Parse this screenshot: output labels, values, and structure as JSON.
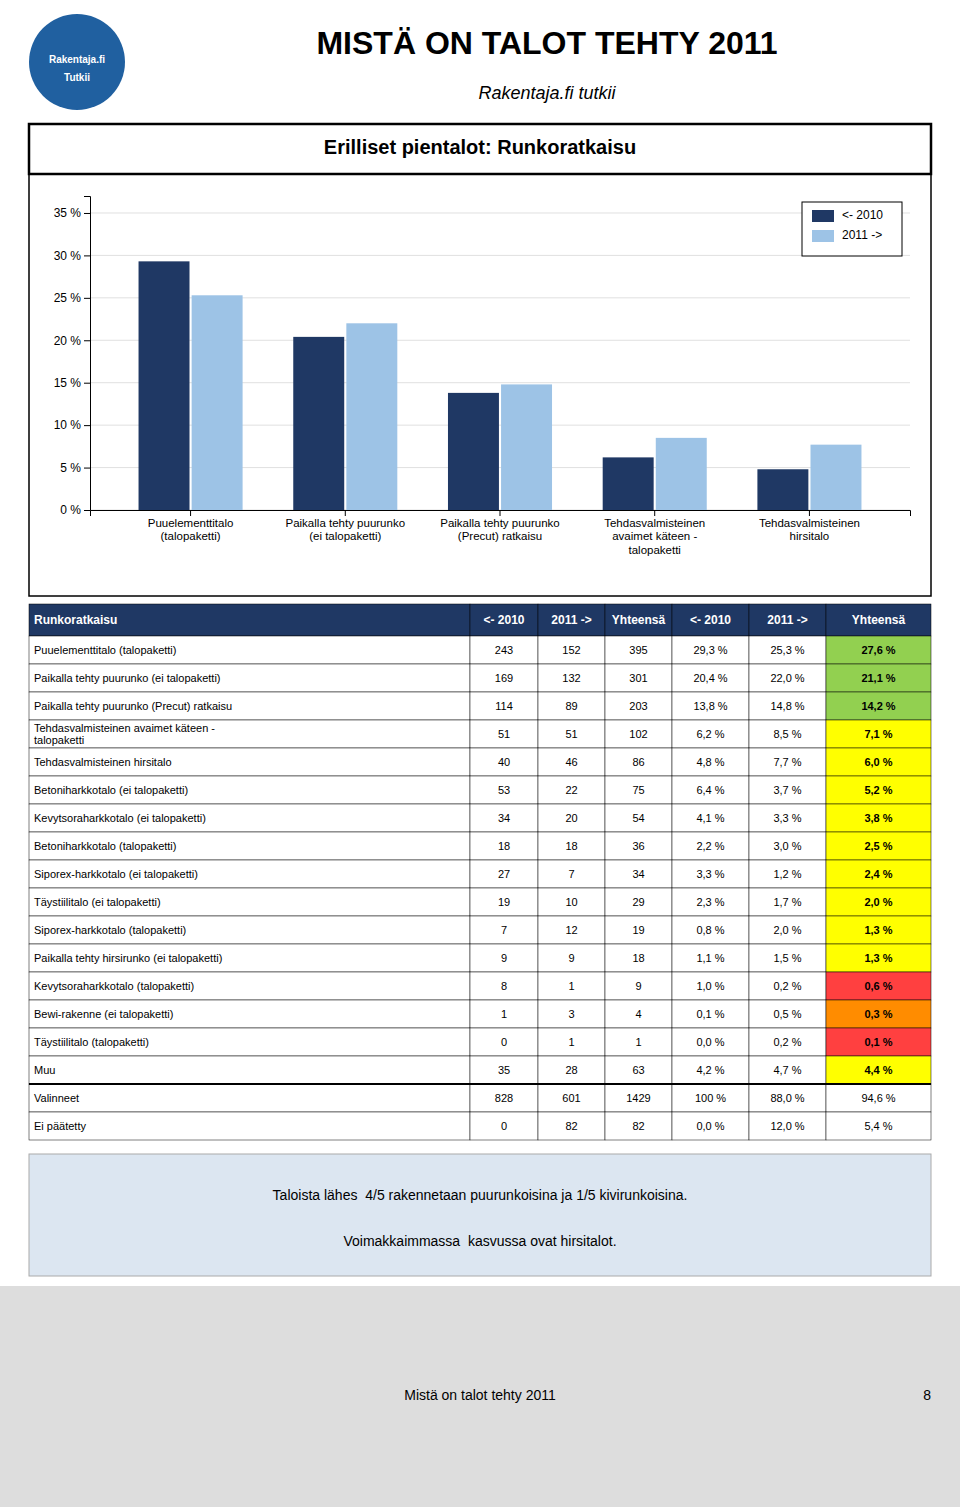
{
  "page": {
    "title": "MISTÄ ON TALOT TEHTY 2011",
    "subtitle": "Rakentaja.fi tutkii",
    "logo": [
      "Rakentaja.fi",
      "Tutkii"
    ],
    "logo_color": "#2060A0",
    "background": "#FFFFFF"
  },
  "chart_data": {
    "type": "bar",
    "title": "Erilliset pientalot: Runkoratkaisu",
    "categories": [
      "Puuelementtitalo\n(talopaketti)",
      "Paikalla tehty puurunko\n(ei talopaketti)",
      "Paikalla tehty puurunko\n(Precut) ratkaisu",
      "Tehdasvalmisteinen\navaimet käteen -\ntalopaketti",
      "Tehdasvalmisteinen\nhirsitalo"
    ],
    "series": [
      {
        "name": "<- 2010",
        "color": "#1F3864",
        "values": [
          29.3,
          20.4,
          13.8,
          6.2,
          4.8
        ]
      },
      {
        "name": "2011 ->",
        "color": "#9DC3E6",
        "values": [
          25.3,
          22.0,
          14.8,
          8.5,
          7.7
        ]
      }
    ],
    "ylim": [
      0,
      37
    ],
    "yticks": [
      {
        "value": 0,
        "label": "0 %"
      },
      {
        "value": 5,
        "label": "5 %"
      },
      {
        "value": 10,
        "label": "10 %"
      },
      {
        "value": 15,
        "label": "15 %"
      },
      {
        "value": 20,
        "label": "20 %"
      },
      {
        "value": 25,
        "label": "25 %"
      },
      {
        "value": 30,
        "label": "30 %"
      },
      {
        "value": 35,
        "label": "35 %"
      }
    ],
    "grid": true,
    "legend": "upper right"
  },
  "table": {
    "header": [
      "Runkoratkaisu",
      "<- 2010",
      "2011 ->",
      "Yhteensä",
      "<- 2010",
      "2011 ->",
      "Yhteensä"
    ],
    "header_color": "#1F3864",
    "header_text_color": "#FFFFFF",
    "rows": [
      [
        "Puuelementtitalo (talopaketti)",
        "243",
        "152",
        "395",
        "29,3 %",
        "25,3 %",
        "27,6 %"
      ],
      [
        "Paikalla tehty puurunko (ei talopaketti)",
        "169",
        "132",
        "301",
        "20,4 %",
        "22,0 %",
        "21,1 %"
      ],
      [
        "Paikalla tehty puurunko (Precut) ratkaisu",
        "114",
        "89",
        "203",
        "13,8 %",
        "14,8 %",
        "14,2 %"
      ],
      [
        "Tehdasvalmisteinen avaimet käteen -\ntalopaketti",
        "51",
        "51",
        "102",
        "6,2 %",
        "8,5 %",
        "7,1 %"
      ],
      [
        "Tehdasvalmisteinen hirsitalo",
        "40",
        "46",
        "86",
        "4,8 %",
        "7,7 %",
        "6,0 %"
      ],
      [
        "Betoniharkkotalo (ei talopaketti)",
        "53",
        "22",
        "75",
        "6,4 %",
        "3,7 %",
        "5,2 %"
      ],
      [
        "Kevytsoraharkkotalo (ei talopaketti)",
        "34",
        "20",
        "54",
        "4,1 %",
        "3,3 %",
        "3,8 %"
      ],
      [
        "Betoniharkkotalo (talopaketti)",
        "18",
        "18",
        "36",
        "2,2 %",
        "3,0 %",
        "2,5 %"
      ],
      [
        "Siporex-harkkotalo (ei talopaketti)",
        "27",
        "7",
        "34",
        "3,3 %",
        "1,2 %",
        "2,4 %"
      ],
      [
        "Täystiilitalo (ei talopaketti)",
        "19",
        "10",
        "29",
        "2,3 %",
        "1,7 %",
        "2,0 %"
      ],
      [
        "Siporex-harkkotalo (talopaketti)",
        "7",
        "12",
        "19",
        "0,8 %",
        "2,0 %",
        "1,3 %"
      ],
      [
        "Paikalla tehty hirsirunko (ei talopaketti)",
        "9",
        "9",
        "18",
        "1,1 %",
        "1,5 %",
        "1,3 %"
      ],
      [
        "Kevytsoraharkkotalo (talopaketti)",
        "8",
        "1",
        "9",
        "1,0 %",
        "0,2 %",
        "0,6 %"
      ],
      [
        "Bewi-rakenne (ei talopaketti)",
        "1",
        "3",
        "4",
        "0,1 %",
        "0,5 %",
        "0,3 %"
      ],
      [
        "Täystiilitalo (talopaketti)",
        "0",
        "1",
        "1",
        "0,0 %",
        "0,2 %",
        "0,1 %"
      ],
      [
        "Muu",
        "35",
        "28",
        "63",
        "4,2 %",
        "4,7 %",
        "4,4 %"
      ]
    ],
    "row_colors": [
      "#92D050",
      "#92D050",
      "#92D050",
      "#FFFF00",
      "#FFFF00",
      "#FFFF00",
      "#FFFF00",
      "#FFFF00",
      "#FFFF00",
      "#FFFF00",
      "#FFFF00",
      "#FFFF00",
      "#FF4040",
      "#FF8C00",
      "#FF4040",
      "#FFFF00"
    ],
    "summary_rows": [
      [
        "Valinneet",
        "828",
        "601",
        "1429",
        "100 %",
        "88,0 %",
        "94,6 %"
      ],
      [
        "Ei päätetty",
        "0",
        "82",
        "82",
        "0,0 %",
        "12,0 %",
        "5,4 %"
      ]
    ],
    "summary_colors": [
      "#FFFFFF",
      "#FFFFFF"
    ]
  },
  "notes": {
    "lines": [
      "Taloista lähes  4/5 rakennetaan puurunkoisina ja 1/5 kivirunkoisina.",
      "Voimakkaimmassa  kasvussa ovat hirsitalot."
    ],
    "color": "#DCE6F1"
  },
  "footer": {
    "text": "Mistä on talot tehty 2011",
    "page": "8",
    "color": "#DDDDDD"
  }
}
